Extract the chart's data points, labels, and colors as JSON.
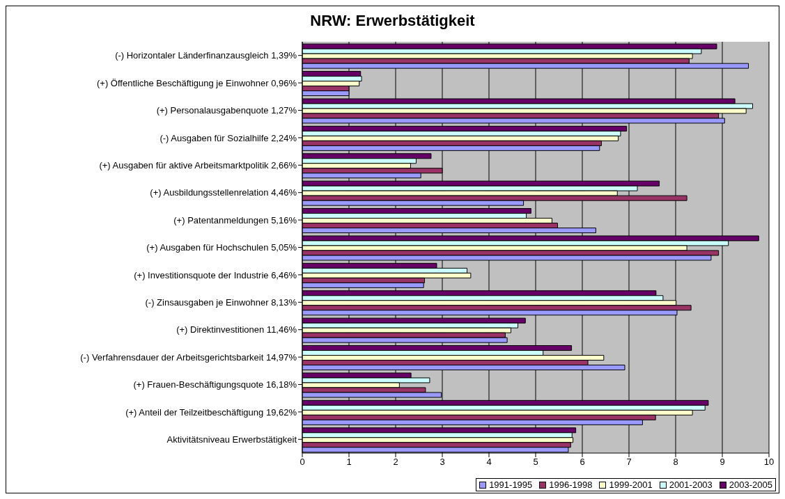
{
  "chart_data": {
    "type": "bar",
    "orientation": "horizontal",
    "title": "NRW: Erwerbstätigkeit",
    "categories": [
      "(-) Horizontaler Länderfinanzausgleich 1,39%",
      "(+) Öffentliche Beschäftigung je Einwohner 0,96%",
      "(+) Personalausgabenquote 1,27%",
      "(-) Ausgaben für Sozialhilfe 2,24%",
      "(+) Ausgaben für aktive Arbeitsmarktpolitik 2,66%",
      "(+) Ausbildungsstellenrelation 4,46%",
      "(+) Patentanmeldungen 5,16%",
      "(+) Ausgaben für Hochschulen 5,05%",
      "(+) Investitionsquote der Industrie 6,46%",
      "(-) Zinsausgaben je Einwohner 8,13%",
      "(+) Direktinvestitionen 11,46%",
      "(-) Verfahrensdauer der Arbeitsgerichtsbarkeit 14,97%",
      "(+) Frauen-Beschäftigungsquote 16,18%",
      "(+) Anteil der Teilzeitbeschäftigung 19,62%",
      "Aktivitätsniveau Erwerbstätigkeit"
    ],
    "series": [
      {
        "name": "1991-1995",
        "color": "#9999ff",
        "values": [
          9.56,
          1.0,
          9.05,
          6.37,
          2.54,
          4.74,
          6.29,
          8.76,
          2.6,
          8.03,
          4.39,
          6.91,
          2.98,
          7.29,
          5.7
        ]
      },
      {
        "name": "1996-1998",
        "color": "#993366",
        "values": [
          8.29,
          1.0,
          8.92,
          6.41,
          3.0,
          8.24,
          5.47,
          8.92,
          2.62,
          8.33,
          4.35,
          6.12,
          2.64,
          7.57,
          5.75
        ]
      },
      {
        "name": "1999-2001",
        "color": "#ffffcc",
        "values": [
          8.36,
          1.22,
          9.51,
          6.77,
          2.32,
          6.75,
          5.35,
          8.24,
          3.61,
          8.01,
          4.47,
          6.46,
          2.08,
          8.36,
          5.8
        ]
      },
      {
        "name": "2001-2003",
        "color": "#ccffff",
        "values": [
          8.55,
          1.27,
          9.65,
          6.82,
          2.44,
          7.18,
          4.8,
          9.13,
          3.53,
          7.73,
          4.62,
          5.16,
          2.73,
          8.63,
          5.78
        ]
      },
      {
        "name": "2003-2005",
        "color": "#660066",
        "values": [
          8.88,
          1.25,
          9.27,
          6.95,
          2.76,
          7.65,
          4.9,
          9.78,
          2.88,
          7.58,
          4.78,
          5.77,
          2.33,
          8.7,
          5.86
        ]
      }
    ],
    "xlim": [
      0,
      10
    ],
    "xticks": [
      0,
      1,
      2,
      3,
      4,
      5,
      6,
      7,
      8,
      9,
      10
    ],
    "grid": "x",
    "legend": "bottom right"
  }
}
